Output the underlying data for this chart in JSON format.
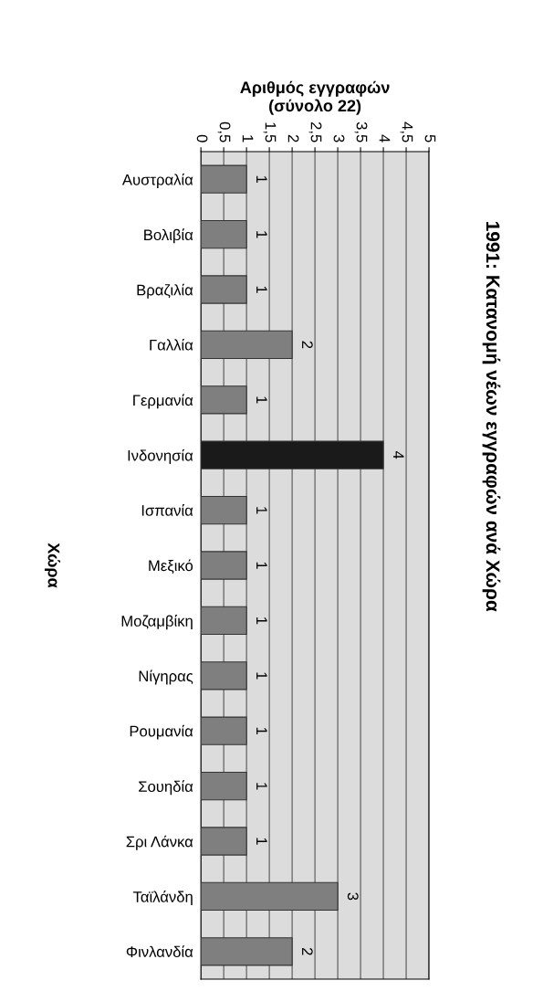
{
  "chart_data": {
    "type": "bar",
    "orientation": "horizontal",
    "title": "1991: Κατανομή νέων εγγραφών ανά Χώρα",
    "xlabel": "Αριθμός εγγραφών\n(σύνολο 22)",
    "ylabel": "Χώρα",
    "categories": [
      "Αυστραλία",
      "Βολιβία",
      "Βραζιλία",
      "Γαλλία",
      "Γερμανία",
      "Ινδονησία",
      "Ισπανία",
      "Μεξικό",
      "Μοζαμβίκη",
      "Νίγηρας",
      "Ρουμανία",
      "Σουηδία",
      "Σρι Λάνκα",
      "Ταϊλάνδη",
      "Φινλανδία"
    ],
    "values": [
      1,
      1,
      1,
      2,
      1,
      4,
      1,
      1,
      1,
      1,
      1,
      1,
      1,
      3,
      2
    ],
    "colors": [
      "#7f7f7f",
      "#7f7f7f",
      "#7f7f7f",
      "#7f7f7f",
      "#7f7f7f",
      "#1a1a1a",
      "#7f7f7f",
      "#7f7f7f",
      "#7f7f7f",
      "#7f7f7f",
      "#7f7f7f",
      "#7f7f7f",
      "#7f7f7f",
      "#7f7f7f",
      "#7f7f7f"
    ],
    "xlim": [
      0,
      5
    ],
    "xticks": [
      0,
      {
        "value": 0.5,
        "label": "0,5"
      },
      1,
      {
        "value": 1.5,
        "label": "1,5"
      },
      2,
      {
        "value": 2.5,
        "label": "2,5"
      },
      3,
      {
        "value": 3.5,
        "label": "3,5"
      },
      4,
      {
        "value": 4.5,
        "label": "4,5"
      },
      5
    ],
    "grid": "x",
    "data_labels": true
  }
}
